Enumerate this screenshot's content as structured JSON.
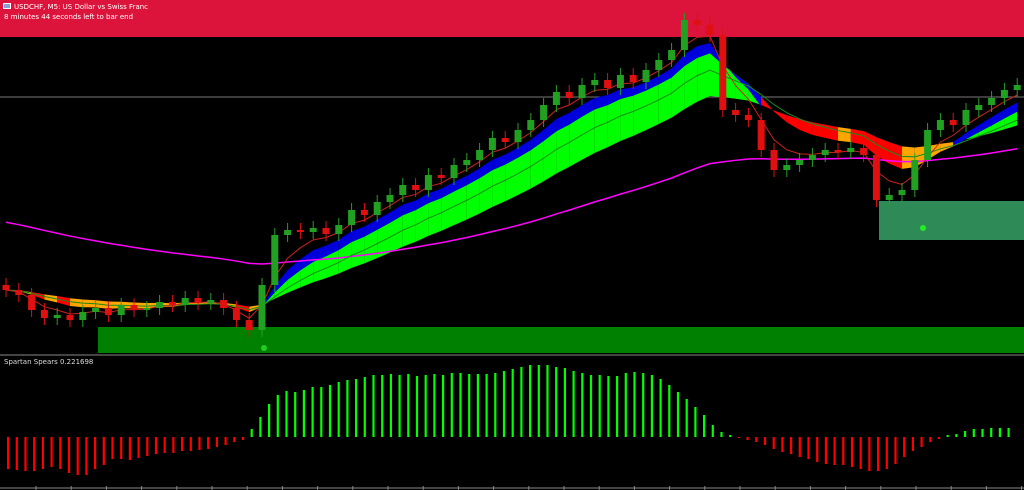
{
  "window": {
    "title": "USDCHF, M5: US Dollar vs Swiss Franc",
    "timer_text": "8 minutes 44 seconds left to bar end"
  },
  "indicator": {
    "label": "Spartan Spears 0.221698"
  },
  "colors": {
    "background": "#000000",
    "top_zone": "#dc143c",
    "demand_zone": "#008000",
    "secondary_zone": "#2e8b57",
    "bull_candle": "#22a022",
    "bear_candle": "#e01010",
    "band_up": "#00ff00",
    "band_down_orange": "#ffa500",
    "band_down_red": "#ff0000",
    "fast_band": "#0000dd",
    "long_ma": "#ff00ff",
    "hist_up": "#00ff00",
    "hist_down": "#ff0000"
  },
  "chart_data": [
    {
      "type": "candlestick",
      "title": "USDCHF, M5",
      "closes": [
        70,
        65,
        50,
        42,
        45,
        40,
        48,
        52,
        45,
        55,
        50,
        52,
        58,
        55,
        62,
        57,
        60,
        52,
        40,
        30,
        75,
        125,
        130,
        128,
        132,
        126,
        135,
        150,
        145,
        158,
        165,
        175,
        170,
        185,
        182,
        195,
        200,
        210,
        222,
        218,
        230,
        240,
        255,
        268,
        262,
        275,
        280,
        272,
        285,
        278,
        290,
        300,
        310,
        340,
        335,
        325,
        250,
        245,
        240,
        210,
        190,
        195,
        200,
        205,
        210,
        208,
        212,
        205,
        160,
        165,
        170,
        200,
        230,
        240,
        235,
        250,
        255,
        262,
        270,
        275
      ],
      "ylim": [
        0,
        360
      ],
      "grid": false
    },
    {
      "type": "bar",
      "title": "Spartan Spears 0.221698",
      "values": [
        -0.32,
        -0.33,
        -0.34,
        -0.34,
        -0.32,
        -0.3,
        -0.32,
        -0.36,
        -0.38,
        -0.38,
        -0.32,
        -0.28,
        -0.22,
        -0.22,
        -0.23,
        -0.21,
        -0.19,
        -0.17,
        -0.16,
        -0.16,
        -0.14,
        -0.14,
        -0.13,
        -0.12,
        -0.1,
        -0.08,
        -0.05,
        -0.03,
        0.08,
        0.2,
        0.33,
        0.42,
        0.46,
        0.45,
        0.47,
        0.5,
        0.5,
        0.52,
        0.55,
        0.57,
        0.58,
        0.6,
        0.62,
        0.62,
        0.63,
        0.62,
        0.63,
        0.61,
        0.62,
        0.63,
        0.62,
        0.64,
        0.64,
        0.63,
        0.63,
        0.63,
        0.64,
        0.66,
        0.68,
        0.7,
        0.72,
        0.72,
        0.72,
        0.7,
        0.69,
        0.66,
        0.64,
        0.62,
        0.62,
        0.61,
        0.61,
        0.64,
        0.65,
        0.64,
        0.62,
        0.58,
        0.52,
        0.45,
        0.38,
        0.3,
        0.22,
        0.12,
        0.05,
        0.02,
        -0.01,
        -0.03,
        -0.05,
        -0.08,
        -0.12,
        -0.15,
        -0.17,
        -0.2,
        -0.22,
        -0.25,
        -0.27,
        -0.28,
        -0.28,
        -0.3,
        -0.32,
        -0.34,
        -0.34,
        -0.32,
        -0.27,
        -0.2,
        -0.14,
        -0.1,
        -0.05,
        -0.02,
        0.02,
        0.03,
        0.06,
        0.08,
        0.08,
        0.09,
        0.09,
        0.09
      ],
      "ylim": [
        -0.8,
        0.8
      ],
      "grid": false
    }
  ]
}
